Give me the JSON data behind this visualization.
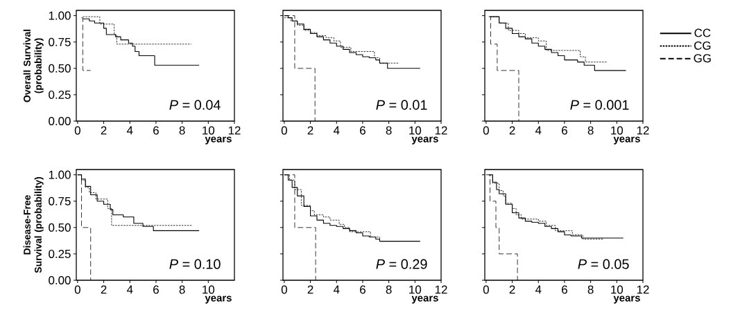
{
  "chart_data": [
    {
      "type": "step",
      "ylabel": "Overall Survival (probability)",
      "xlabel": "years",
      "annotations": [
        "*P* = 0.04"
      ],
      "xlim": [
        -0.1,
        12
      ],
      "ylim": [
        0,
        1.05
      ],
      "xticks": [
        0,
        2,
        4,
        6,
        8,
        10,
        12
      ],
      "yticks": [
        {
          "value": 0,
          "label": "0.00"
        },
        {
          "value": 0.25,
          "label": "0.25"
        },
        {
          "value": 0.5,
          "label": "0.50"
        },
        {
          "value": 0.75,
          "label": "0.75"
        },
        {
          "value": 1,
          "label": "1.00"
        }
      ],
      "series": [
        {
          "color": "#000000",
          "line_style": "solid",
          "x": [
            0.4,
            0.9,
            1.3,
            2.0,
            2.2,
            2.9,
            3.3,
            3.9,
            4.2,
            4.4,
            4.7,
            5.9,
            9.3
          ],
          "values": [
            0.97,
            0.95,
            0.93,
            0.88,
            0.82,
            0.8,
            0.77,
            0.74,
            0.71,
            0.66,
            0.62,
            0.53,
            0.53
          ]
        },
        {
          "color": "#000000",
          "line_style": "dotted",
          "x": [
            0.4,
            1.7,
            2.8,
            3.0,
            8.7
          ],
          "values": [
            0.99,
            0.92,
            0.82,
            0.73,
            0.73
          ]
        },
        {
          "color": "#000000",
          "line_style": "dashed",
          "x": [
            0.3,
            0.4,
            1.0
          ],
          "values": [
            0.98,
            0.48,
            0.48
          ]
        }
      ]
    },
    {
      "type": "step",
      "xlabel": "years",
      "annotations": [
        "*P* = 0.01"
      ],
      "tick_labels": "x",
      "xlim": [
        -0.1,
        12
      ],
      "ylim": [
        0,
        1.05
      ],
      "xticks": [
        0,
        2,
        4,
        6,
        8,
        10,
        12
      ],
      "yticks": [
        {
          "value": 0,
          "label": null
        },
        {
          "value": 0.25,
          "label": null
        },
        {
          "value": 0.5,
          "label": null
        },
        {
          "value": 0.75,
          "label": null
        },
        {
          "value": 1,
          "label": null
        }
      ],
      "series": [
        {
          "color": "#000000",
          "line_style": "solid",
          "x": [
            0,
            0.3,
            0.6,
            1.0,
            1.5,
            2.0,
            2.5,
            3.0,
            3.5,
            4.0,
            4.5,
            5.0,
            5.5,
            6.0,
            6.5,
            7.0,
            7.3,
            7.9,
            10.4
          ],
          "values": [
            1.0,
            0.98,
            0.95,
            0.92,
            0.87,
            0.83,
            0.8,
            0.77,
            0.74,
            0.71,
            0.68,
            0.65,
            0.63,
            0.61,
            0.6,
            0.58,
            0.55,
            0.5,
            0.5
          ]
        },
        {
          "color": "#000000",
          "line_style": "dotted",
          "x": [
            0,
            0.5,
            1.0,
            1.5,
            2.0,
            2.5,
            3.2,
            3.8,
            4.3,
            5.1,
            6.9,
            7.3,
            8.8
          ],
          "values": [
            0.98,
            0.95,
            0.91,
            0.86,
            0.84,
            0.81,
            0.79,
            0.76,
            0.7,
            0.66,
            0.6,
            0.55,
            0.55
          ]
        },
        {
          "color": "#000000",
          "line_style": "dashed",
          "x": [
            0,
            0.8,
            2.35
          ],
          "values": [
            1.0,
            0.5,
            0.0
          ]
        }
      ]
    },
    {
      "type": "step",
      "xlabel": "years",
      "annotations": [
        "*P* = 0.001"
      ],
      "tick_labels": "x",
      "legend": "right",
      "xlim": [
        -0.1,
        12
      ],
      "ylim": [
        0,
        1.05
      ],
      "xticks": [
        0,
        2,
        4,
        6,
        8,
        10,
        12
      ],
      "yticks": [
        {
          "value": 0,
          "label": null
        },
        {
          "value": 0.25,
          "label": null
        },
        {
          "value": 0.5,
          "label": null
        },
        {
          "value": 0.75,
          "label": null
        },
        {
          "value": 1,
          "label": null
        }
      ],
      "series": [
        {
          "name": "CC",
          "color": "#000000",
          "line_style": "solid",
          "x": [
            0.3,
            1.0,
            1.5,
            2.0,
            2.5,
            3.0,
            3.5,
            4.0,
            4.5,
            5.0,
            5.5,
            6.0,
            7.0,
            7.5,
            8.3,
            10.7
          ],
          "values": [
            0.99,
            0.93,
            0.88,
            0.83,
            0.8,
            0.78,
            0.74,
            0.71,
            0.68,
            0.65,
            0.62,
            0.58,
            0.56,
            0.53,
            0.48,
            0.48
          ]
        },
        {
          "name": "CG",
          "color": "#000000",
          "line_style": "dotted",
          "x": [
            0.3,
            1.0,
            1.7,
            2.5,
            3.0,
            4.0,
            4.6,
            7.2,
            7.6,
            9.3
          ],
          "values": [
            0.99,
            0.93,
            0.86,
            0.83,
            0.79,
            0.76,
            0.67,
            0.61,
            0.56,
            0.56
          ]
        },
        {
          "name": "GG",
          "color": "#000000",
          "line_style": "dashed",
          "x": [
            0.2,
            0.35,
            0.85,
            2.5
          ],
          "values": [
            0.99,
            0.73,
            0.48,
            0.0
          ]
        }
      ]
    },
    {
      "type": "step",
      "ylabel": "Disease-Free Survival (probability)",
      "xlabel": "years",
      "annotations": [
        "*P* = 0.10"
      ],
      "xlim": [
        -0.1,
        12
      ],
      "ylim": [
        0,
        1.05
      ],
      "xticks": [
        0,
        2,
        4,
        6,
        8,
        10
      ],
      "yticks": [
        {
          "value": 0,
          "label": "0.00"
        },
        {
          "value": 0.25,
          "label": "0.25"
        },
        {
          "value": 0.5,
          "label": "0.50"
        },
        {
          "value": 0.75,
          "label": "0.75"
        },
        {
          "value": 1,
          "label": "1.00"
        }
      ],
      "series": [
        {
          "color": "#000000",
          "line_style": "solid",
          "x": [
            0,
            0.3,
            0.6,
            1.0,
            1.5,
            2.0,
            2.5,
            2.7,
            3.5,
            4.3,
            5.0,
            5.8,
            9.3
          ],
          "values": [
            1.0,
            0.96,
            0.89,
            0.81,
            0.75,
            0.72,
            0.67,
            0.62,
            0.6,
            0.54,
            0.51,
            0.47,
            0.47
          ]
        },
        {
          "color": "#000000",
          "line_style": "dotted",
          "x": [
            0,
            0.3,
            0.6,
            0.9,
            1.4,
            2.3,
            2.6,
            8.8
          ],
          "values": [
            1.0,
            0.95,
            0.88,
            0.83,
            0.77,
            0.68,
            0.52,
            0.52
          ]
        },
        {
          "color": "#000000",
          "line_style": "dashed",
          "x": [
            0,
            0.3,
            1.0
          ],
          "values": [
            1.0,
            0.5,
            0.0
          ]
        }
      ]
    },
    {
      "type": "step",
      "xlabel": "years",
      "annotations": [
        "*P* = 0.29"
      ],
      "tick_labels": "x",
      "xlim": [
        -0.1,
        12
      ],
      "ylim": [
        0,
        1.05
      ],
      "xticks": [
        0,
        2,
        4,
        6,
        8,
        10,
        12
      ],
      "yticks": [
        {
          "value": 0,
          "label": null
        },
        {
          "value": 0.25,
          "label": null
        },
        {
          "value": 0.5,
          "label": null
        },
        {
          "value": 0.75,
          "label": null
        },
        {
          "value": 1,
          "label": null
        }
      ],
      "series": [
        {
          "color": "#000000",
          "line_style": "solid",
          "x": [
            0,
            0.3,
            0.6,
            1.0,
            1.5,
            2.0,
            2.5,
            3.0,
            3.5,
            4.0,
            4.5,
            5.0,
            5.5,
            6.0,
            6.5,
            7.0,
            7.3,
            10.4
          ],
          "values": [
            1.0,
            0.95,
            0.88,
            0.8,
            0.7,
            0.61,
            0.57,
            0.54,
            0.52,
            0.51,
            0.49,
            0.47,
            0.45,
            0.42,
            0.41,
            0.39,
            0.37,
            0.37
          ]
        },
        {
          "color": "#000000",
          "line_style": "dotted",
          "x": [
            0,
            0.4,
            0.8,
            1.3,
            2.0,
            2.3,
            3.0,
            3.5,
            4.2,
            4.6,
            5.0,
            6.6,
            7.3,
            8.8
          ],
          "values": [
            1.0,
            0.95,
            0.86,
            0.71,
            0.66,
            0.62,
            0.6,
            0.57,
            0.53,
            0.5,
            0.46,
            0.41,
            0.37,
            0.37
          ]
        },
        {
          "color": "#000000",
          "line_style": "dashed",
          "x": [
            0,
            0.8,
            2.4
          ],
          "values": [
            1.0,
            0.5,
            0.0
          ]
        }
      ]
    },
    {
      "type": "step",
      "xlabel": "years",
      "annotations": [
        "*P* = 0.05"
      ],
      "tick_labels": "x",
      "xlim": [
        -0.1,
        12
      ],
      "ylim": [
        0,
        1.05
      ],
      "xticks": [
        0,
        2,
        4,
        6,
        8,
        10,
        12
      ],
      "yticks": [
        {
          "value": 0,
          "label": null
        },
        {
          "value": 0.25,
          "label": null
        },
        {
          "value": 0.5,
          "label": null
        },
        {
          "value": 0.75,
          "label": null
        },
        {
          "value": 1,
          "label": null
        }
      ],
      "series": [
        {
          "color": "#000000",
          "line_style": "solid",
          "x": [
            0.2,
            0.5,
            0.8,
            1.0,
            1.5,
            2.0,
            2.5,
            3.0,
            3.5,
            4.0,
            4.5,
            5.0,
            5.5,
            6.0,
            6.5,
            7.3,
            10.5
          ],
          "values": [
            1.0,
            0.93,
            0.86,
            0.82,
            0.72,
            0.64,
            0.59,
            0.56,
            0.55,
            0.54,
            0.51,
            0.49,
            0.46,
            0.43,
            0.42,
            0.4,
            0.4
          ]
        },
        {
          "color": "#000000",
          "line_style": "dotted",
          "x": [
            0.2,
            0.5,
            1.0,
            1.3,
            1.5,
            2.0,
            2.3,
            2.7,
            4.0,
            4.6,
            5.3,
            6.6,
            7.4,
            9.0
          ],
          "values": [
            1.0,
            0.92,
            0.85,
            0.8,
            0.73,
            0.68,
            0.62,
            0.58,
            0.56,
            0.52,
            0.47,
            0.43,
            0.39,
            0.39
          ]
        },
        {
          "color": "#000000",
          "line_style": "dashed",
          "x": [
            0,
            0.3,
            0.75,
            1.0,
            2.4
          ],
          "values": [
            1.0,
            0.75,
            0.5,
            0.25,
            0.0
          ]
        }
      ]
    }
  ]
}
